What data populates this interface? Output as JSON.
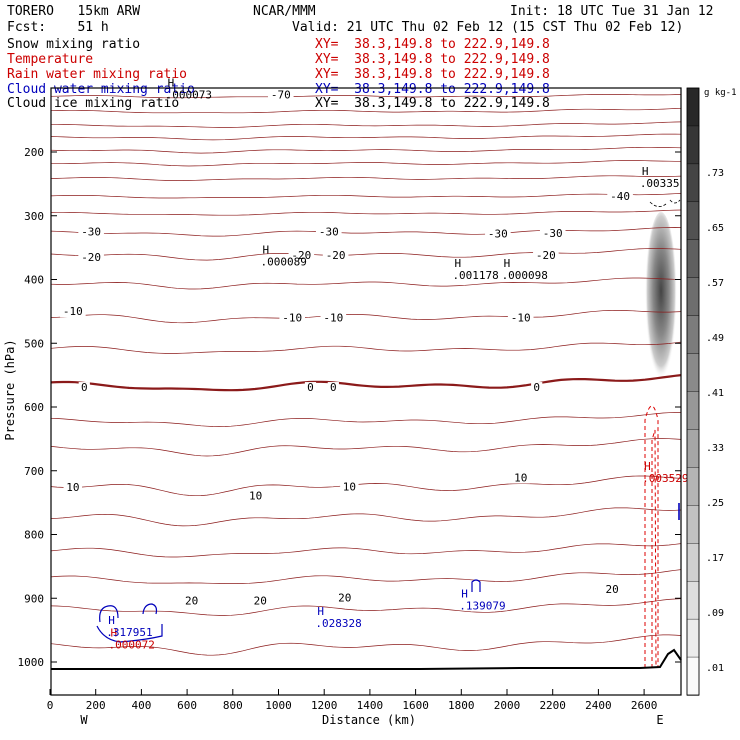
{
  "header": {
    "model": "TORERO   15km ARW",
    "center": "NCAR/MMM",
    "init": "Init: 18 UTC Tue 31 Jan 12",
    "fcst": "Fcst:    51 h",
    "valid": "Valid: 21 UTC Thu 02 Feb 12 (15 CST Thu 02 Feb 12)"
  },
  "fields": [
    {
      "name": "Snow mixing ratio",
      "xy": "XY=  38.3,149.8 to 222.9,149.8",
      "color": "#000000"
    },
    {
      "name": "Temperature",
      "xy": "XY=  38.3,149.8 to 222.9,149.8",
      "color": "#cc0000"
    },
    {
      "name": "Rain water mixing ratio",
      "xy": "XY=  38.3,149.8 to 222.9,149.8",
      "color": "#cc0000"
    },
    {
      "name": "Cloud water mixing ratio",
      "xy": "XY=  38.3,149.8 to 222.9,149.8",
      "color": "#0000bb"
    },
    {
      "name": "Cloud ice mixing ratio",
      "xy": "XY=  38.3,149.8 to 222.9,149.8",
      "color": "#000000"
    }
  ],
  "chart_data": {
    "type": "contour-cross-section",
    "xlabel": "Distance (km)",
    "ylabel": "Pressure (hPa)",
    "xlim": [
      0,
      2750
    ],
    "ylim": [
      1050,
      100
    ],
    "x_ticks": [
      0,
      200,
      400,
      600,
      800,
      1000,
      1200,
      1400,
      1600,
      1800,
      2000,
      2200,
      2400,
      2600
    ],
    "x_tick_labels": [
      "0",
      "200",
      "400",
      "600",
      "800",
      "1000",
      "1200",
      "1400",
      "1600",
      "1800",
      "2000",
      "2200",
      "2400",
      "2600"
    ],
    "y_ticks": [
      200,
      300,
      400,
      500,
      600,
      700,
      800,
      900,
      1000
    ],
    "y_tick_labels": [
      "200",
      "300",
      "400",
      "500",
      "600",
      "700",
      "800",
      "900",
      "1000"
    ],
    "end_labels": {
      "left": "W",
      "right": "E"
    },
    "colorbar": {
      "unit": "g kg-1",
      "ticks": [
        0.01,
        0.09,
        0.17,
        0.25,
        0.33,
        0.41,
        0.49,
        0.57,
        0.65,
        0.73
      ],
      "tick_labels": [
        ".01",
        ".09",
        ".17",
        ".25",
        ".33",
        ".41",
        ".49",
        ".57",
        ".65",
        ".73"
      ]
    },
    "temperature_labels": [
      {
        "text": "-70",
        "x": 1010,
        "p": 116
      },
      {
        "text": "-40",
        "x": 2495,
        "p": 275
      },
      {
        "text": "-30",
        "x": 180,
        "p": 331
      },
      {
        "text": "-30",
        "x": 1220,
        "p": 331
      },
      {
        "text": "-30",
        "x": 1960,
        "p": 334
      },
      {
        "text": "-30",
        "x": 2200,
        "p": 333
      },
      {
        "text": "-20",
        "x": 180,
        "p": 371
      },
      {
        "text": "-20",
        "x": 1100,
        "p": 368
      },
      {
        "text": "-20",
        "x": 1250,
        "p": 368
      },
      {
        "text": "-20",
        "x": 2170,
        "p": 368
      },
      {
        "text": "-10",
        "x": 100,
        "p": 456
      },
      {
        "text": "-10",
        "x": 1060,
        "p": 466
      },
      {
        "text": "-10",
        "x": 1240,
        "p": 466
      },
      {
        "text": "-10",
        "x": 2060,
        "p": 466
      },
      {
        "text": "0",
        "x": 150,
        "p": 575
      },
      {
        "text": "0",
        "x": 1140,
        "p": 575
      },
      {
        "text": "0",
        "x": 1240,
        "p": 575
      },
      {
        "text": "0",
        "x": 2130,
        "p": 575
      },
      {
        "text": "10",
        "x": 100,
        "p": 732
      },
      {
        "text": "10",
        "x": 900,
        "p": 745
      },
      {
        "text": "10",
        "x": 1310,
        "p": 731
      },
      {
        "text": "10",
        "x": 2060,
        "p": 717
      },
      {
        "text": "20",
        "x": 620,
        "p": 910
      },
      {
        "text": "20",
        "x": 920,
        "p": 910
      },
      {
        "text": "20",
        "x": 1290,
        "p": 905
      },
      {
        "text": "20",
        "x": 2460,
        "p": 892
      }
    ],
    "maxima": [
      {
        "marker": "H",
        "value": ".000089",
        "x": 930,
        "p": 378,
        "field": "snow"
      },
      {
        "marker": "H",
        "value": ".001178",
        "x": 1770,
        "p": 399,
        "field": "snow"
      },
      {
        "marker": "H",
        "value": ".000098",
        "x": 1985,
        "p": 399,
        "field": "snow"
      },
      {
        "marker": "H",
        "value": ".00335",
        "x": 2590,
        "p": 255,
        "field": "snow"
      },
      {
        "marker": "H",
        "value": ".000073",
        "x": 515,
        "p": 116,
        "field": "cloud-ice"
      },
      {
        "marker": "H",
        "value": ".003529",
        "x": 2600,
        "p": 718,
        "field": "rain"
      },
      {
        "marker": "H",
        "value": ".000072",
        "x": 265,
        "p": 979,
        "field": "rain"
      },
      {
        "marker": "H",
        "value": ".317951",
        "x": 255,
        "p": 959,
        "field": "cloud-water"
      },
      {
        "marker": "H",
        "value": ".028328",
        "x": 1170,
        "p": 945,
        "field": "cloud-water"
      },
      {
        "marker": "H",
        "value": ".139079",
        "x": 1800,
        "p": 918,
        "field": "cloud-water"
      }
    ]
  }
}
